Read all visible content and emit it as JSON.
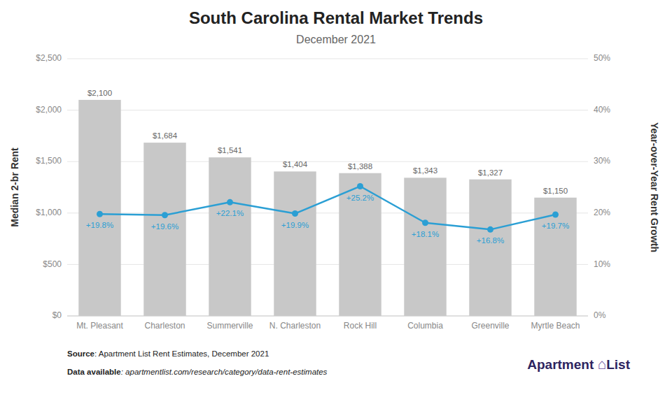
{
  "chart_data": {
    "type": "bar",
    "title": "South Carolina Rental Market Trends",
    "subtitle": "December 2021",
    "categories": [
      "Mt. Pleasant",
      "Charleston",
      "Summerville",
      "N. Charleston",
      "Rock Hill",
      "Columbia",
      "Greenville",
      "Myrtle Beach"
    ],
    "series": [
      {
        "type": "bar",
        "color": "#c8c8c8",
        "values": [
          2100,
          1684,
          1541,
          1404,
          1388,
          1343,
          1327,
          1150
        ],
        "value_labels": [
          "$2,100",
          "$1,684",
          "$1,541",
          "$1,404",
          "$1,388",
          "$1,343",
          "$1,327",
          "$1,150"
        ]
      },
      {
        "type": "line",
        "axis": "y2",
        "color": "#2b9fd4",
        "marker": "circle",
        "line_style": "solid",
        "values": [
          19.8,
          19.6,
          22.1,
          19.9,
          25.2,
          18.1,
          16.8,
          19.7
        ],
        "value_labels": [
          "+19.8%",
          "+19.6%",
          "+22.1%",
          "+19.9%",
          "+25.2%",
          "+18.1%",
          "+16.8%",
          "+19.7%"
        ]
      }
    ],
    "ylabel": "Median 2-br Rent",
    "y2label": "Year-over-Year Rent Growth",
    "ylim": [
      0,
      2500
    ],
    "yticks": [
      {
        "value": 0,
        "label": "$0"
      },
      {
        "value": 500,
        "label": "$500"
      },
      {
        "value": 1000,
        "label": "$1,000"
      },
      {
        "value": 1500,
        "label": "$1,500"
      },
      {
        "value": 2000,
        "label": "$2,000"
      },
      {
        "value": 2500,
        "label": "$2,500"
      }
    ],
    "y2lim": [
      0,
      50
    ],
    "y2ticks": [
      {
        "value": 0,
        "label": "0%"
      },
      {
        "value": 10,
        "label": "10%"
      },
      {
        "value": 20,
        "label": "20%"
      },
      {
        "value": 30,
        "label": "30%"
      },
      {
        "value": 40,
        "label": "40%"
      },
      {
        "value": 50,
        "label": "50%"
      }
    ],
    "grid": true,
    "data_labels": true,
    "annotations": [
      [
        "Source",
        ": Apartment List Rent Estimates, December 2021"
      ],
      [
        "Data available",
        ": apartmentlist.com/research/category/data-rent-estimates"
      ],
      [
        "Apartment ",
        "⌂",
        "List"
      ]
    ]
  }
}
